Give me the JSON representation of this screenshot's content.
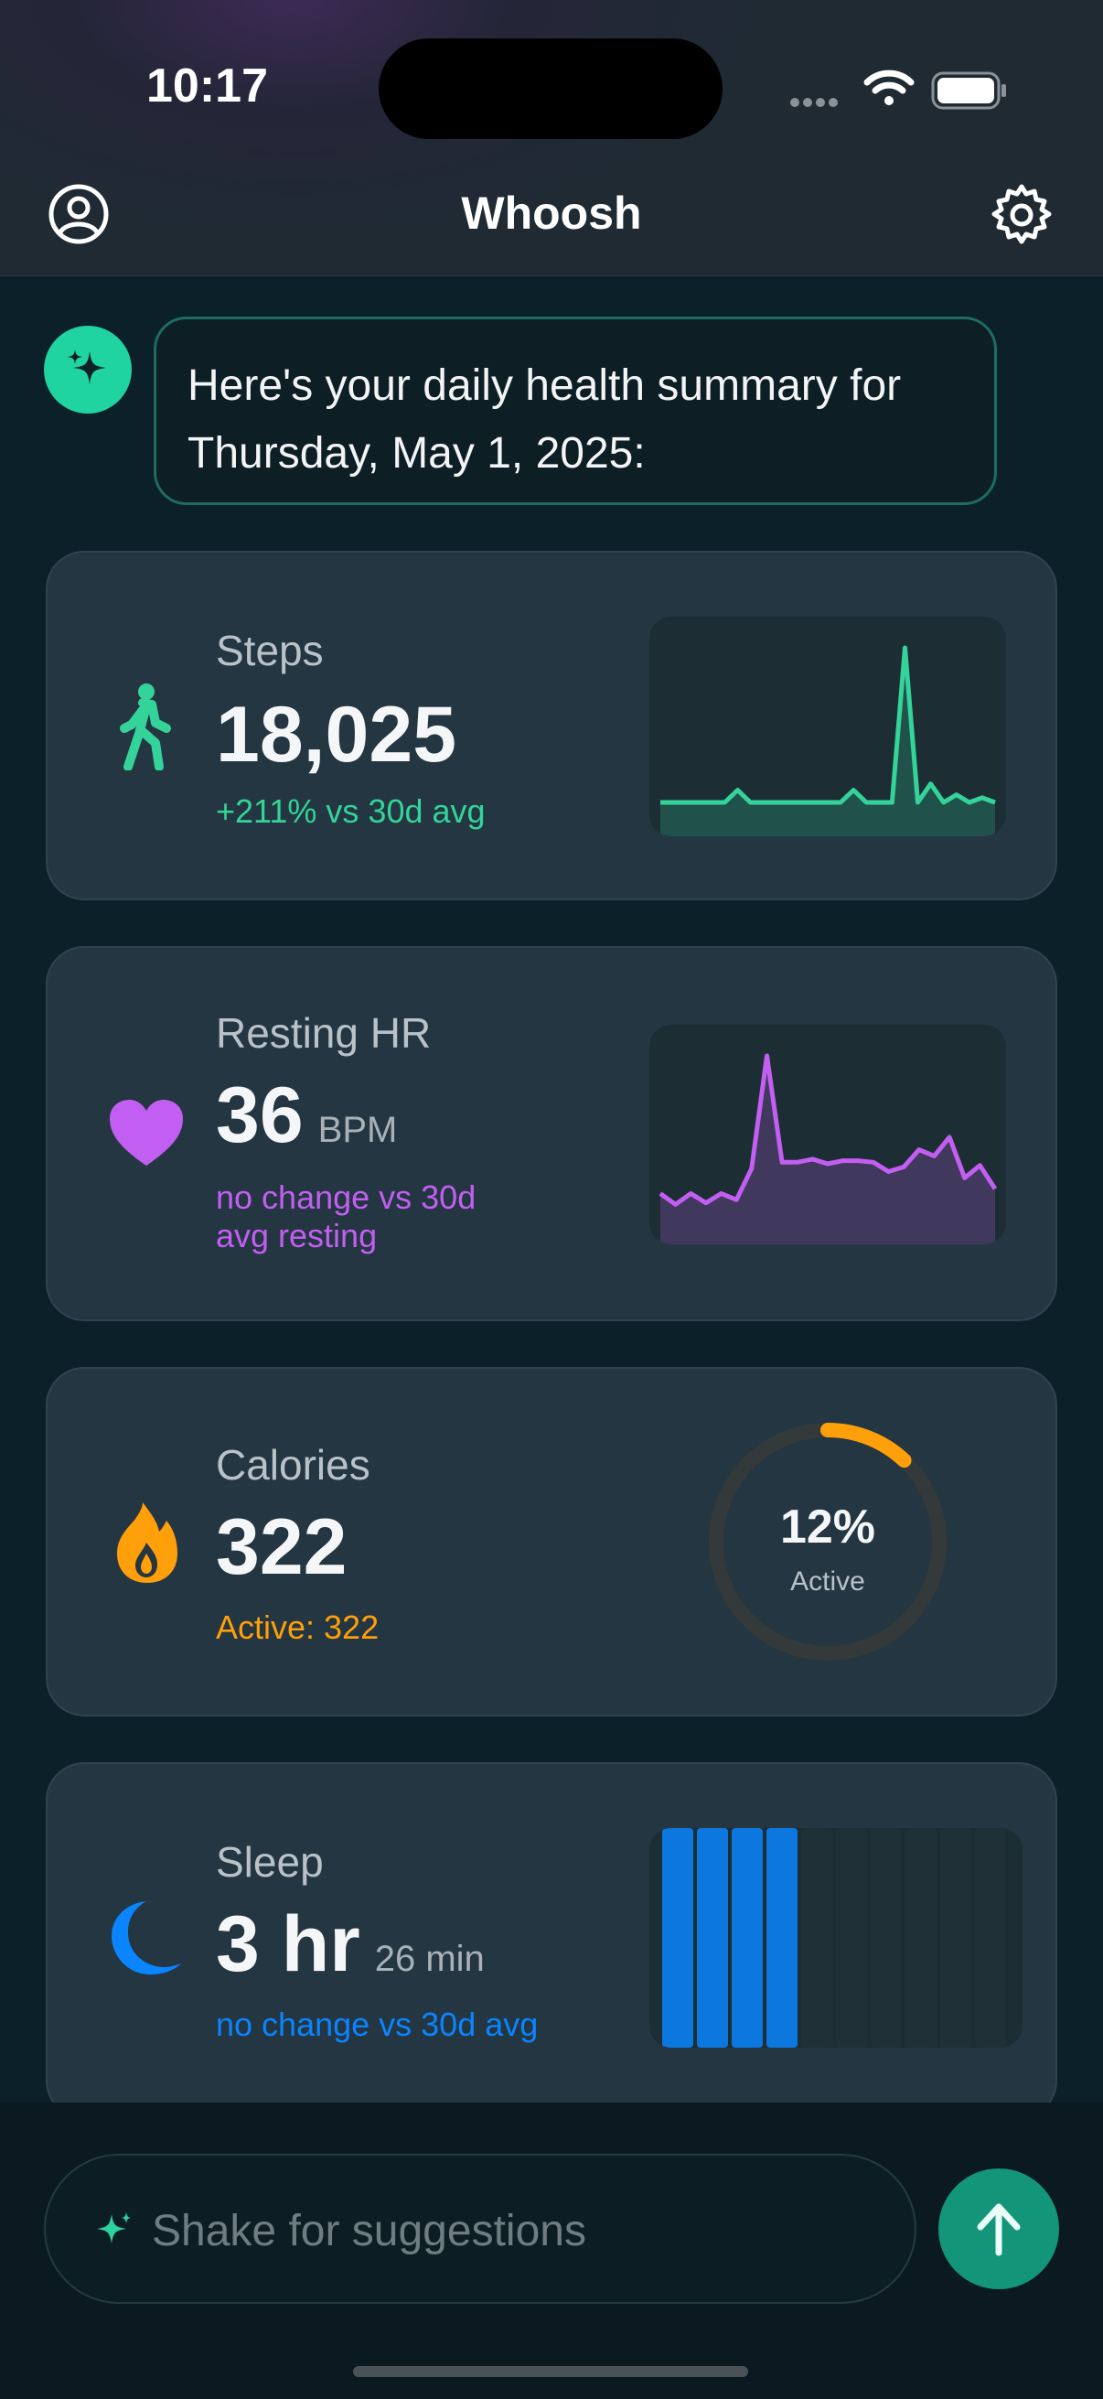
{
  "status_bar": {
    "time": "10:17"
  },
  "nav": {
    "title": "Whoosh",
    "profile_icon": "person-circle-icon",
    "settings_icon": "gear-icon"
  },
  "message": {
    "avatar_icon": "sparkles-icon",
    "text": "Here's your daily health summary for Thursday, May 1, 2025:"
  },
  "cards": {
    "steps": {
      "icon": "walking-figure-icon",
      "label": "Steps",
      "value": "18,025",
      "sub": "+211% vs 30d avg",
      "color": "#34d399",
      "trend": [
        0,
        0,
        0,
        0,
        0,
        0,
        0.08,
        0,
        0,
        0,
        0,
        0,
        0,
        0,
        0,
        0.08,
        0,
        0,
        0,
        1,
        0,
        0.12,
        0,
        0.05,
        0,
        0.03,
        0
      ]
    },
    "resting_hr": {
      "icon": "heart-icon",
      "label": "Resting HR",
      "value": "36",
      "unit": "BPM",
      "sub": "no change vs 30d avg resting",
      "color": "#c35ef2",
      "trend": [
        0.12,
        0.05,
        0.12,
        0.06,
        0.12,
        0.08,
        0.28,
        1,
        0.32,
        0.32,
        0.34,
        0.31,
        0.33,
        0.33,
        0.32,
        0.26,
        0.29,
        0.4,
        0.36,
        0.48,
        0.22,
        0.3,
        0.15
      ]
    },
    "calories": {
      "icon": "flame-icon",
      "label": "Calories",
      "value": "322",
      "sub": "Active: 322",
      "color": "#ff9f0a",
      "ring_percent": 12,
      "ring_text": "12%",
      "ring_caption": "Active"
    },
    "sleep": {
      "icon": "moon-icon",
      "label": "Sleep",
      "value": "3 hr",
      "unit": "26 min",
      "sub": "no change vs 30d avg",
      "color": "#0a84ff",
      "filled_bars": 4,
      "total_bars": 10
    }
  },
  "composer": {
    "placeholder": "Shake for suggestions",
    "sparkle_icon": "sparkle-icon",
    "send_icon": "arrow-up-icon"
  }
}
